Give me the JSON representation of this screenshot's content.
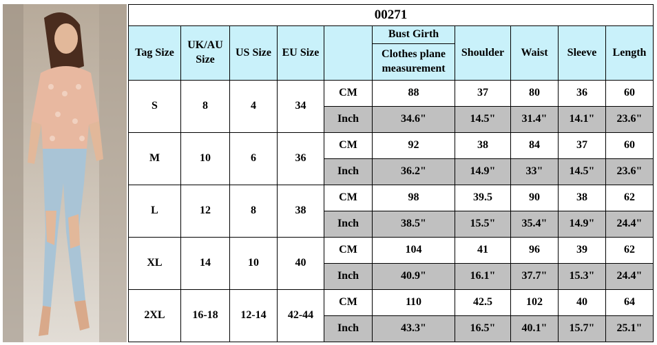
{
  "table": {
    "title": "00271",
    "headers": [
      "Tag Size",
      "UK/AU Size",
      "US Size",
      "EU Size",
      "Bust Girth",
      "Shoulder",
      "Waist",
      "Sleeve",
      "Length"
    ],
    "bust_note": "Clothes plane measurement",
    "units": [
      "CM",
      "Inch"
    ],
    "sizes": [
      {
        "tag": "S",
        "uk": "8",
        "us": "4",
        "eu": "34",
        "cm": [
          "88",
          "37",
          "80",
          "36",
          "60"
        ],
        "inch": [
          "34.6\"",
          "14.5\"",
          "31.4\"",
          "14.1\"",
          "23.6\""
        ]
      },
      {
        "tag": "M",
        "uk": "10",
        "us": "6",
        "eu": "36",
        "cm": [
          "92",
          "38",
          "84",
          "37",
          "60"
        ],
        "inch": [
          "36.2\"",
          "14.9\"",
          "33\"",
          "14.5\"",
          "23.6\""
        ]
      },
      {
        "tag": "L",
        "uk": "12",
        "us": "8",
        "eu": "38",
        "cm": [
          "98",
          "39.5",
          "90",
          "38",
          "62"
        ],
        "inch": [
          "38.5\"",
          "15.5\"",
          "35.4\"",
          "14.9\"",
          "24.4\""
        ]
      },
      {
        "tag": "XL",
        "uk": "14",
        "us": "10",
        "eu": "40",
        "cm": [
          "104",
          "41",
          "96",
          "39",
          "62"
        ],
        "inch": [
          "40.9\"",
          "16.1\"",
          "37.7\"",
          "15.3\"",
          "24.4\""
        ]
      },
      {
        "tag": "2XL",
        "uk": "16-18",
        "us": "12-14",
        "eu": "42-44",
        "cm": [
          "110",
          "42.5",
          "102",
          "40",
          "64"
        ],
        "inch": [
          "43.3\"",
          "16.5\"",
          "40.1\"",
          "15.7\"",
          "25.1\""
        ]
      }
    ]
  }
}
